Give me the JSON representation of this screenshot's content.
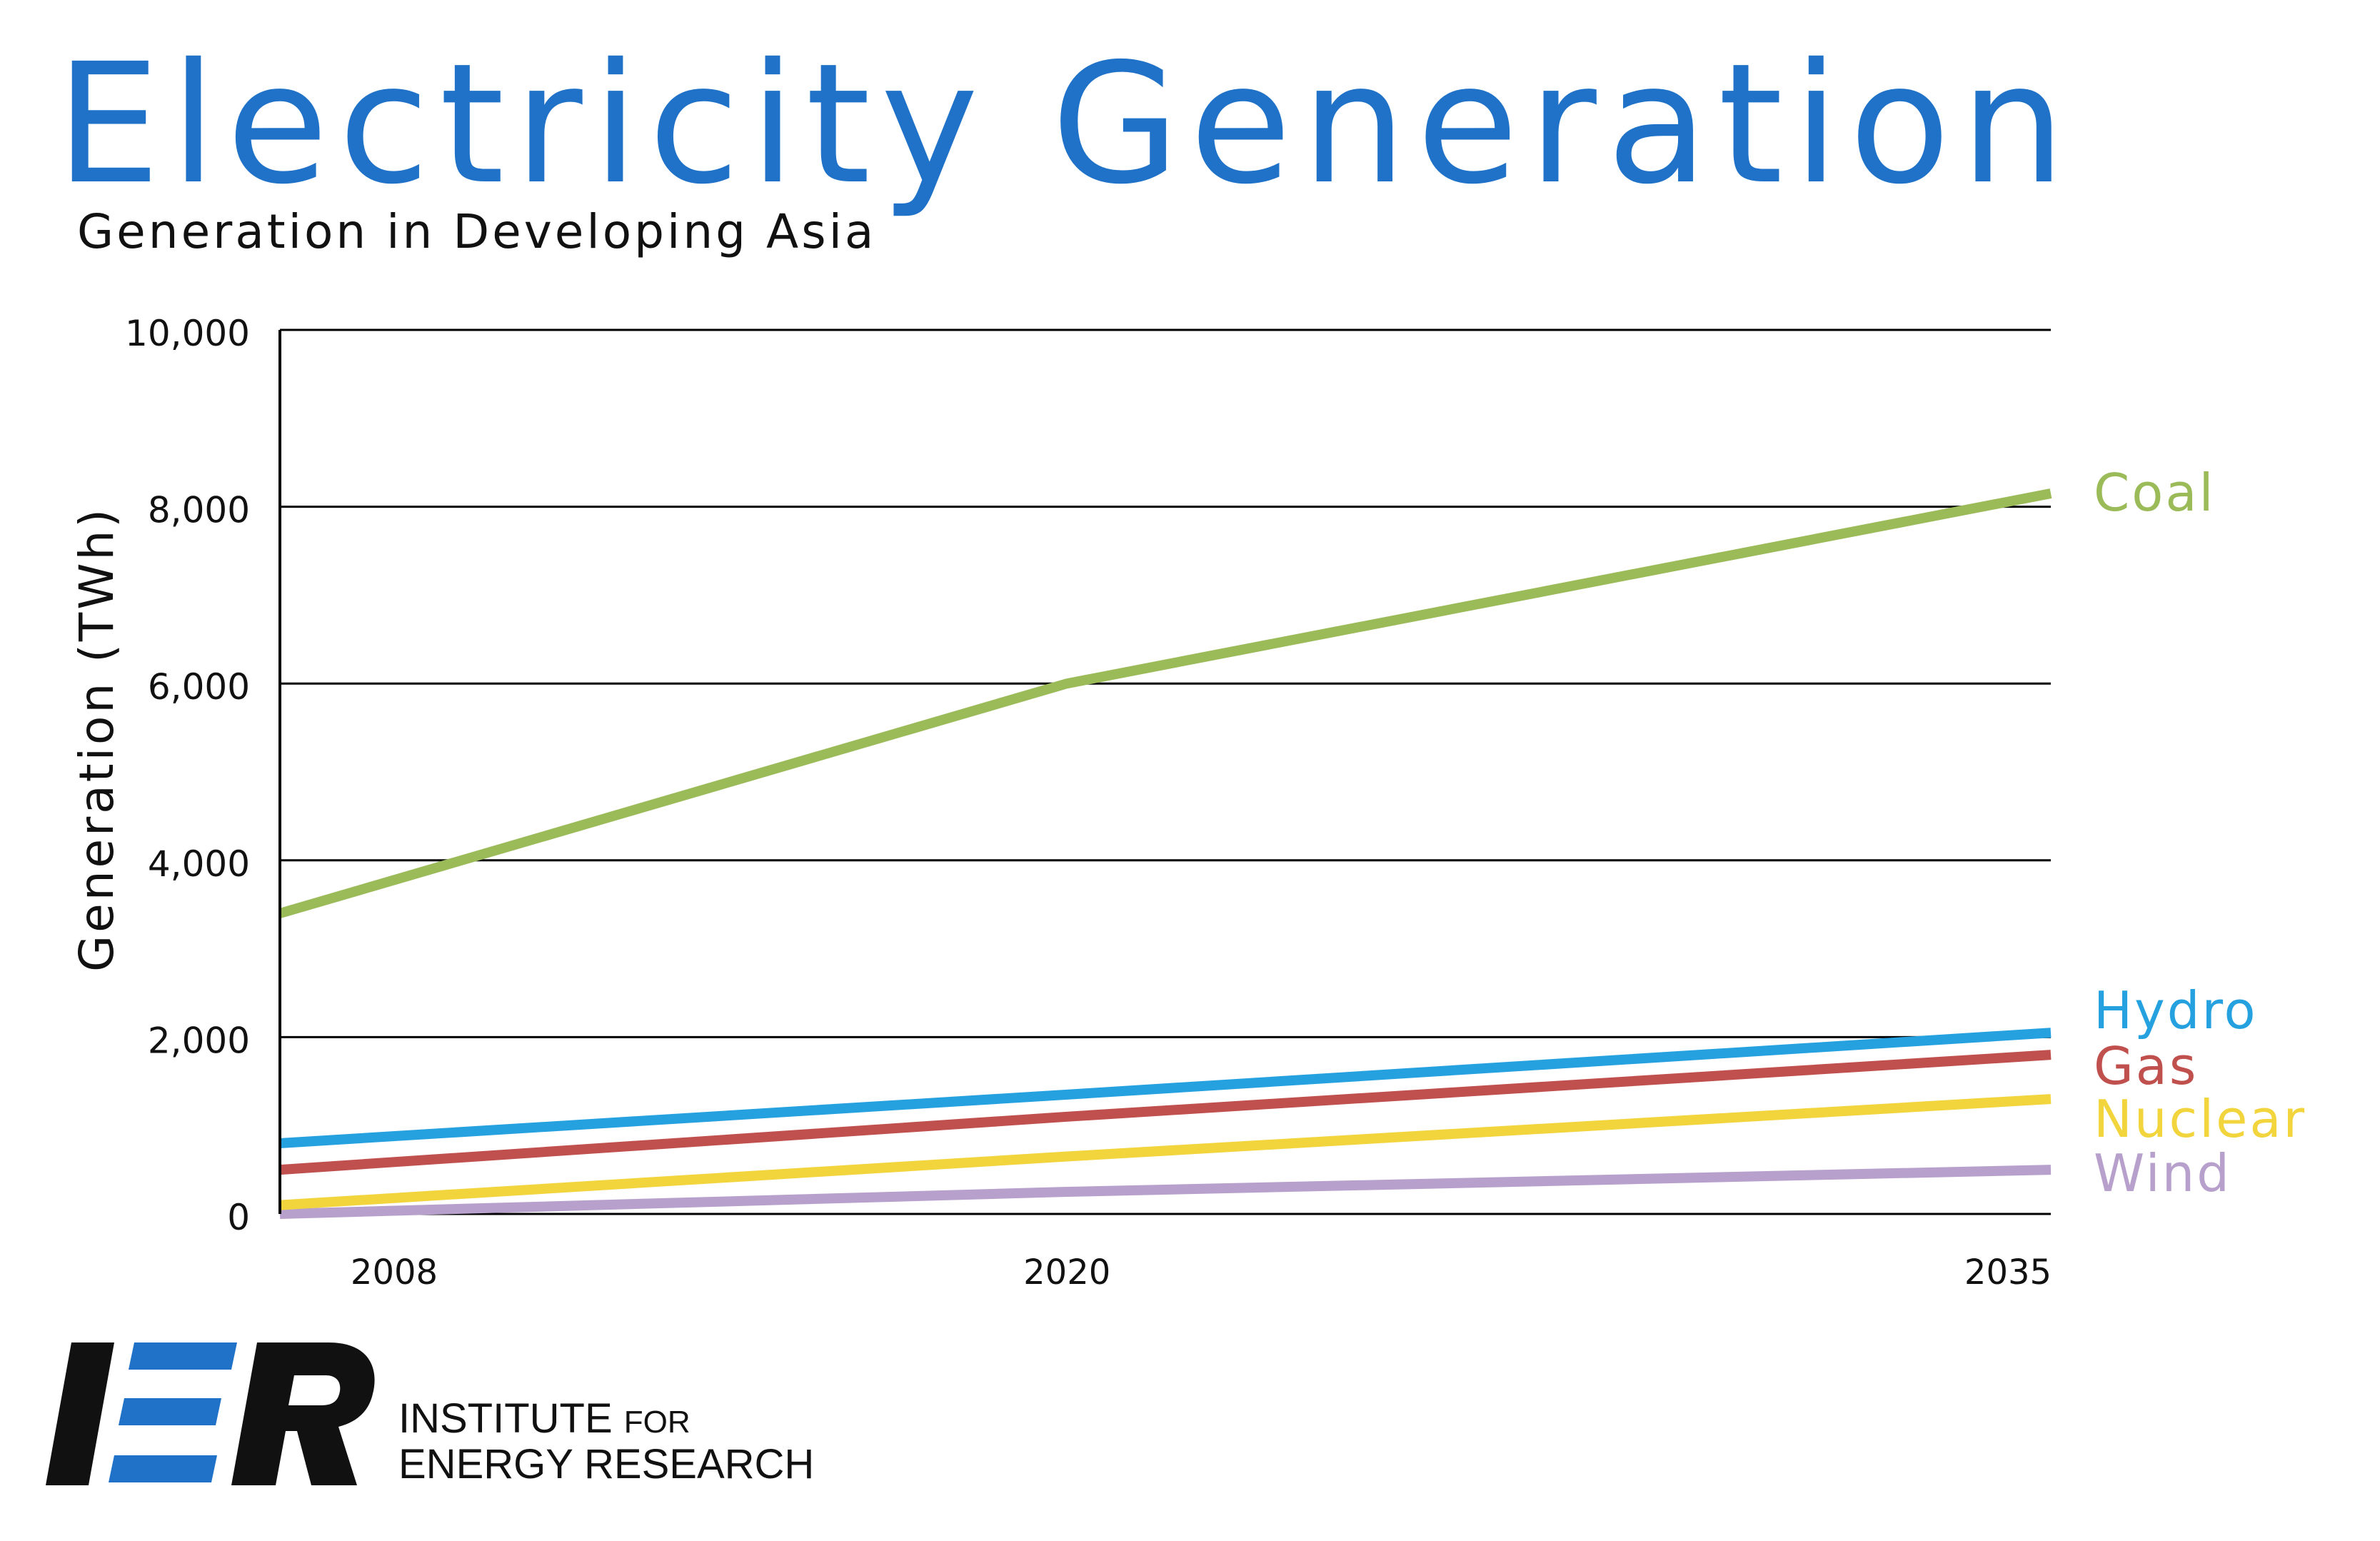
{
  "chart_data": {
    "type": "line",
    "title": "Electricity  Generation",
    "subtitle": "Generation in Developing Asia",
    "xlabel": "",
    "ylabel": "Generation (TWh)",
    "x": [
      2008,
      2020,
      2035
    ],
    "x_tick_labels": [
      "2008",
      "2020",
      "2035"
    ],
    "ylim": [
      0,
      10000
    ],
    "y_ticks": [
      0,
      2000,
      4000,
      6000,
      8000,
      10000
    ],
    "y_tick_labels": [
      "0",
      "2,000",
      "4,000",
      "6,000",
      "8,000",
      "10,000"
    ],
    "grid": "horizontal",
    "legend": "direct labels at right end of lines",
    "series": [
      {
        "name": "Coal",
        "color": "#9bbb59",
        "values": [
          3400,
          6000,
          8150
        ]
      },
      {
        "name": "Hydro",
        "color": "#25a1e0",
        "values": [
          800,
          1350,
          2050
        ]
      },
      {
        "name": "Gas",
        "color": "#c0504d",
        "values": [
          500,
          1100,
          1800
        ]
      },
      {
        "name": "Nuclear",
        "color": "#f2d43d",
        "values": [
          100,
          650,
          1300
        ]
      },
      {
        "name": "Wind",
        "color": "#b7a0cc",
        "values": [
          0,
          250,
          500
        ]
      }
    ]
  },
  "branding": {
    "logo_letters": "IER",
    "org_line1_main": "INSTITUTE",
    "org_line1_small": "FOR",
    "org_line2": "ENERGY RESEARCH",
    "logo_black": "#111111",
    "logo_blue": "#1f72c8"
  }
}
